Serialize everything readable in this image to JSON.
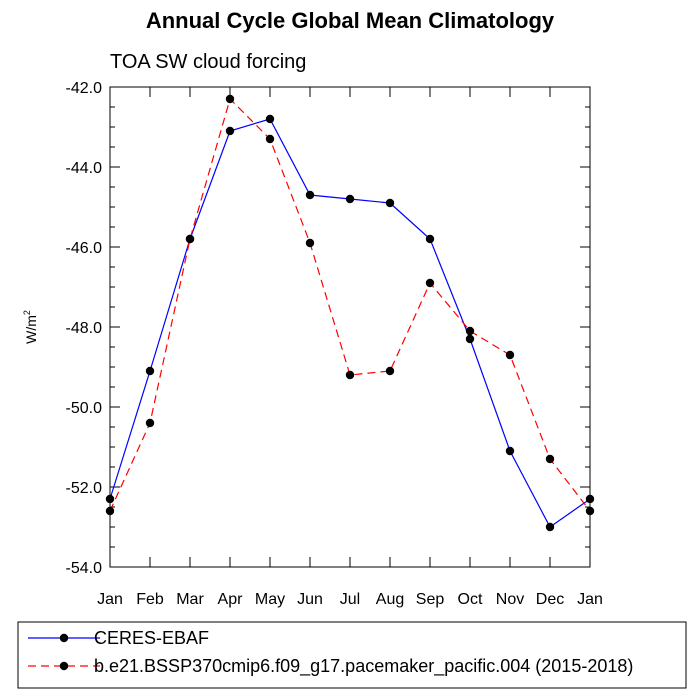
{
  "chart_data": {
    "type": "line",
    "title": "Annual Cycle Global Mean Climatology",
    "subtitle": "TOA SW cloud forcing",
    "ylabel": "W/m",
    "ylabel_sup": "2",
    "xlabel": "",
    "categories": [
      "Jan",
      "Feb",
      "Mar",
      "Apr",
      "May",
      "Jun",
      "Jul",
      "Aug",
      "Sep",
      "Oct",
      "Nov",
      "Dec",
      "Jan"
    ],
    "ylim": [
      -54.0,
      -42.0
    ],
    "yticks": [
      "-42.0",
      "-44.0",
      "-46.0",
      "-48.0",
      "-50.0",
      "-52.0",
      "-54.0"
    ],
    "ytick_values": [
      -42,
      -44,
      -46,
      -48,
      -50,
      -52,
      -54
    ],
    "grid": false,
    "legend_placement": "bottom",
    "series": [
      {
        "name": "CERES-EBAF",
        "color": "#0000ff",
        "dash": "solid",
        "values": [
          -52.3,
          -49.1,
          -45.8,
          -43.1,
          -42.8,
          -44.7,
          -44.8,
          -44.9,
          -45.8,
          -48.3,
          -51.1,
          -53.0,
          -52.3
        ]
      },
      {
        "name": "b.e21.BSSP370cmip6.f09_g17.pacemaker_pacific.004 (2015-2018)",
        "color": "#ff0000",
        "dash": "dashed",
        "values": [
          -52.6,
          -50.4,
          -45.8,
          -42.3,
          -43.3,
          -45.9,
          -49.2,
          -49.1,
          -46.9,
          -48.1,
          -48.7,
          -51.3,
          -52.6
        ]
      }
    ]
  }
}
